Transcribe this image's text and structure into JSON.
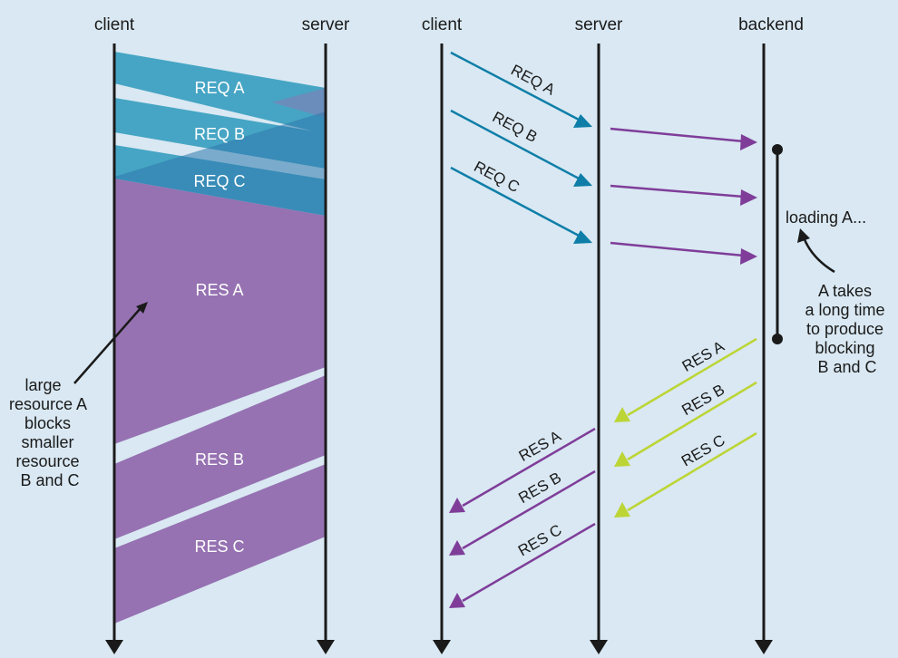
{
  "colors": {
    "background": "#d9e8f2",
    "request_teal": "#46a5c4",
    "request_dark": "#2e78ad",
    "response_purple": "#9672b2",
    "request_arrow": "#0e7ea8",
    "response_arrow": "#7f3d99",
    "backend_arrow": "#bcd535",
    "timeline": "#1a1a1a"
  },
  "left_diagram": {
    "client_label": "client",
    "server_label": "server",
    "req_a": "REQ A",
    "req_b": "REQ B",
    "req_c": "REQ C",
    "res_a": "RES A",
    "res_b": "RES B",
    "res_c": "RES C",
    "note_lines": [
      "large",
      "resource A",
      "blocks",
      "smaller",
      "resource",
      "B and C"
    ]
  },
  "right_diagram": {
    "client_label": "client",
    "server_label": "server",
    "backend_label": "backend",
    "req_a": "REQ A",
    "req_b": "REQ B",
    "req_c": "REQ C",
    "backend_res_a": "RES A",
    "backend_res_b": "RES B",
    "backend_res_c": "RES C",
    "client_res_a": "RES A",
    "client_res_b": "RES B",
    "client_res_c": "RES C",
    "loading_label": "loading A...",
    "note_lines": [
      "A takes",
      "a long time",
      "to produce",
      "blocking",
      "B and C"
    ]
  }
}
